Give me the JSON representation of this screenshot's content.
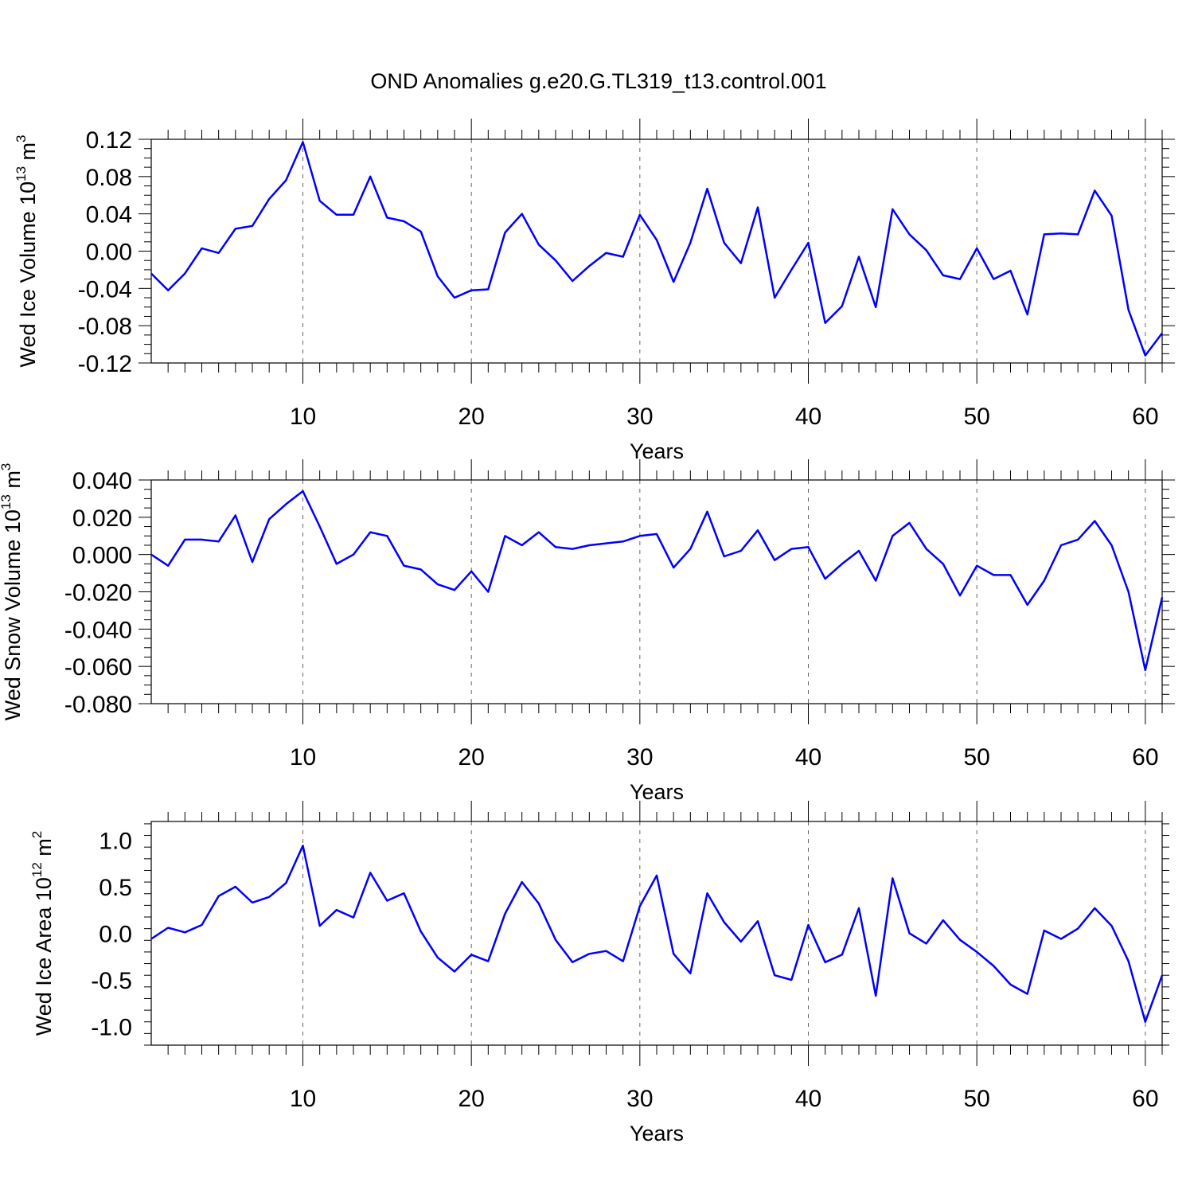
{
  "figure": {
    "title": "OND Anomalies g.e20.G.TL319_t13.control.001"
  },
  "chart_data": [
    {
      "type": "line",
      "panel": "ice-volume",
      "ylabel": "Wed Ice Volume 10",
      "ylabel_exp": "13",
      "ylabel_unit": "m",
      "ylabel_unit_exp": "3",
      "xlabel": "Years",
      "xlim": [
        1,
        61
      ],
      "ylim": [
        -0.12,
        0.12
      ],
      "xticks": [
        10,
        20,
        30,
        40,
        50,
        60
      ],
      "yticks": [
        0.12,
        0.08,
        0.04,
        0.0,
        -0.04,
        -0.08,
        -0.12
      ],
      "ytick_labels": [
        "0.12",
        "0.08",
        "0.04",
        "0.00",
        "-0.04",
        "-0.08",
        "-0.12"
      ],
      "xtick_labels": [
        "10",
        "20",
        "30",
        "40",
        "50",
        "60"
      ],
      "grid": "vertical-dashed",
      "color": "#0000ff",
      "x_start": 1,
      "values": [
        -0.024,
        -0.042,
        -0.024,
        0.003,
        -0.002,
        0.024,
        0.027,
        0.056,
        0.076,
        0.117,
        0.054,
        0.039,
        0.039,
        0.08,
        0.036,
        0.032,
        0.021,
        -0.027,
        -0.05,
        -0.042,
        -0.041,
        0.02,
        0.04,
        0.007,
        -0.01,
        -0.032,
        -0.016,
        -0.002,
        -0.006,
        0.039,
        0.012,
        -0.033,
        0.009,
        0.067,
        0.009,
        -0.013,
        0.047,
        -0.05,
        -0.02,
        0.009,
        -0.077,
        -0.059,
        -0.006,
        -0.06,
        0.045,
        0.018,
        0.001,
        -0.026,
        -0.03,
        0.003,
        -0.03,
        -0.021,
        -0.068,
        0.018,
        0.019,
        0.018,
        0.065,
        0.038,
        -0.063,
        -0.112,
        -0.088
      ]
    },
    {
      "type": "line",
      "panel": "snow-volume",
      "ylabel": "Wed Snow Volume 10",
      "ylabel_exp": "13",
      "ylabel_unit": "m",
      "ylabel_unit_exp": "3",
      "xlabel": "Years",
      "xlim": [
        1,
        61
      ],
      "ylim": [
        -0.08,
        0.04
      ],
      "xticks": [
        10,
        20,
        30,
        40,
        50,
        60
      ],
      "yticks": [
        0.04,
        0.02,
        0.0,
        -0.02,
        -0.04,
        -0.06,
        -0.08
      ],
      "ytick_labels": [
        "0.040",
        "0.020",
        "0.000",
        "-0.020",
        "-0.040",
        "-0.060",
        "-0.080"
      ],
      "xtick_labels": [
        "10",
        "20",
        "30",
        "40",
        "50",
        "60"
      ],
      "grid": "vertical-dashed",
      "color": "#0000ff",
      "x_start": 1,
      "values": [
        0.0,
        -0.006,
        0.008,
        0.008,
        0.007,
        0.021,
        -0.004,
        0.019,
        0.027,
        0.034,
        0.015,
        -0.005,
        0.0,
        0.012,
        0.01,
        -0.006,
        -0.008,
        -0.016,
        -0.019,
        -0.009,
        -0.02,
        0.01,
        0.005,
        0.012,
        0.004,
        0.003,
        0.005,
        0.006,
        0.007,
        0.01,
        0.011,
        -0.007,
        0.003,
        0.023,
        -0.001,
        0.002,
        0.013,
        -0.003,
        0.003,
        0.004,
        -0.013,
        -0.005,
        0.002,
        -0.014,
        0.01,
        0.017,
        0.003,
        -0.005,
        -0.022,
        -0.006,
        -0.011,
        -0.011,
        -0.027,
        -0.014,
        0.005,
        0.008,
        0.018,
        0.005,
        -0.02,
        -0.062,
        -0.023
      ]
    },
    {
      "type": "line",
      "panel": "ice-area",
      "ylabel": "Wed Ice Area 10",
      "ylabel_exp": "12",
      "ylabel_unit": "m",
      "ylabel_unit_exp": "2",
      "xlabel": "Years",
      "xlim": [
        1,
        61
      ],
      "ylim": [
        -1.2,
        1.2
      ],
      "xticks": [
        10,
        20,
        30,
        40,
        50,
        60
      ],
      "yticks": [
        1.0,
        0.5,
        0.0,
        -0.5,
        -1.0
      ],
      "ytick_labels": [
        "1.0",
        "0.5",
        "0.0",
        "-0.5",
        "-1.0"
      ],
      "xtick_labels": [
        "10",
        "20",
        "30",
        "40",
        "50",
        "60"
      ],
      "grid": "vertical-dashed",
      "color": "#0000ff",
      "x_start": 1,
      "values": [
        -0.06,
        0.06,
        0.01,
        0.09,
        0.4,
        0.5,
        0.33,
        0.39,
        0.54,
        0.94,
        0.08,
        0.25,
        0.17,
        0.65,
        0.35,
        0.43,
        0.02,
        -0.26,
        -0.41,
        -0.23,
        -0.3,
        0.21,
        0.55,
        0.32,
        -0.07,
        -0.31,
        -0.22,
        -0.19,
        -0.3,
        0.29,
        0.62,
        -0.22,
        -0.43,
        0.43,
        0.12,
        -0.09,
        0.13,
        -0.45,
        -0.5,
        0.09,
        -0.31,
        -0.23,
        0.27,
        -0.67,
        0.59,
        0.0,
        -0.11,
        0.14,
        -0.07,
        -0.2,
        -0.35,
        -0.55,
        -0.65,
        0.03,
        -0.06,
        0.05,
        0.27,
        0.08,
        -0.3,
        -0.95,
        -0.45
      ]
    }
  ]
}
